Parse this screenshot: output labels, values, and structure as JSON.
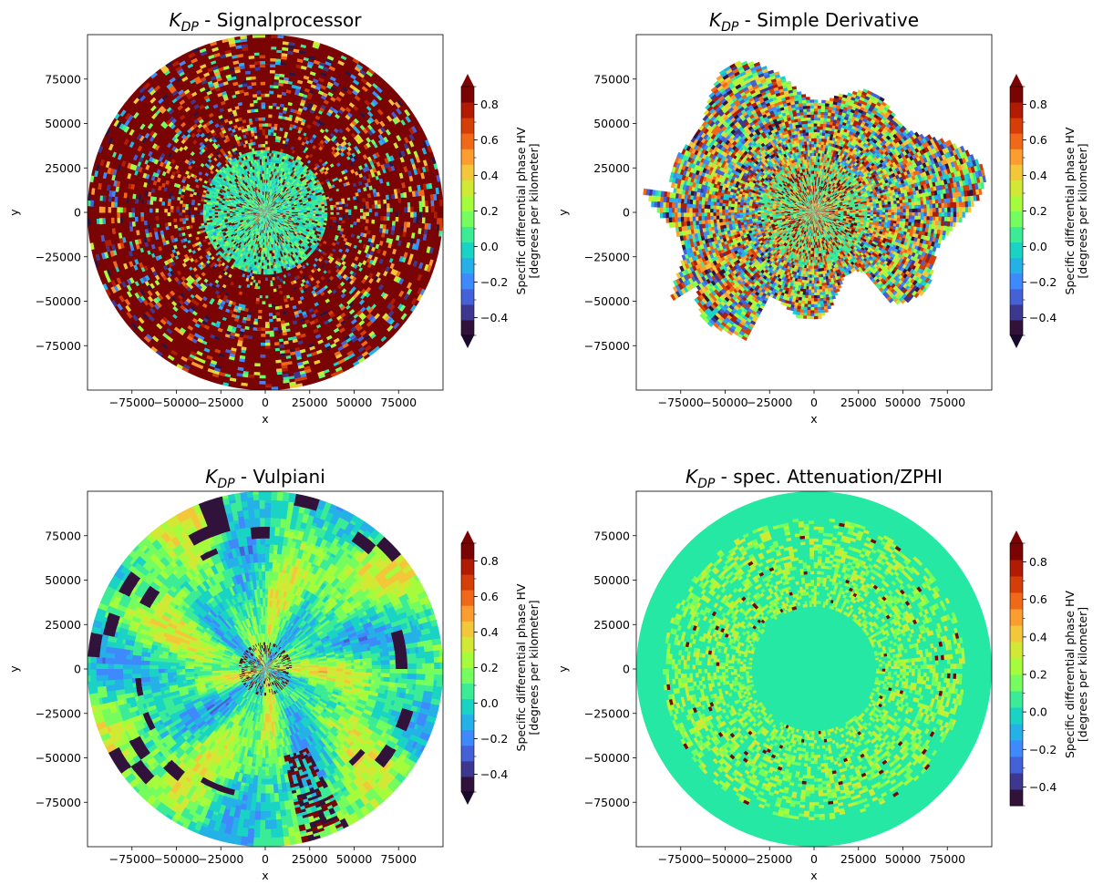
{
  "chart_data": [
    {
      "type": "heatmap",
      "title": {
        "main": "K",
        "sub": "DP",
        "rest": " - Signalprocessor"
      },
      "xlabel": "x",
      "ylabel": "y",
      "xlim": [
        -100000,
        100000
      ],
      "ylim": [
        -100000,
        100000
      ],
      "xticks": [
        -75000,
        -50000,
        -25000,
        0,
        25000,
        50000,
        75000
      ],
      "xticklabels": [
        "−75000",
        "−50000",
        "−25000",
        "0",
        "25000",
        "50000",
        "75000"
      ],
      "yticks": [
        75000,
        50000,
        25000,
        0,
        -25000,
        -50000,
        -75000
      ],
      "yticklabels": [
        "75000",
        "50000",
        "25000",
        "0",
        "−25000",
        "−50000",
        "−75000"
      ],
      "pattern": "noisy-dark",
      "colorbar": {
        "label_line1": "Specific differential phase HV",
        "label_line2": "[degrees per kilometer]",
        "ticks": [
          0.8,
          0.6,
          0.4,
          0.2,
          0.0,
          -0.2,
          -0.4
        ],
        "ticklabels": [
          "0.8",
          "0.6",
          "0.4",
          "0.2",
          "0.0",
          "−0.2",
          "−0.4"
        ],
        "range": [
          -0.5,
          0.9
        ],
        "step": 0.1,
        "extend": "both"
      }
    },
    {
      "type": "heatmap",
      "title": {
        "main": "K",
        "sub": "DP",
        "rest": " - Simple Derivative"
      },
      "xlabel": "x",
      "ylabel": "y",
      "xlim": [
        -100000,
        100000
      ],
      "ylim": [
        -100000,
        100000
      ],
      "xticks": [
        -75000,
        -50000,
        -25000,
        0,
        25000,
        50000,
        75000
      ],
      "xticklabels": [
        "−75000",
        "−50000",
        "−25000",
        "0",
        "25000",
        "50000",
        "75000"
      ],
      "yticks": [
        75000,
        50000,
        25000,
        0,
        -25000,
        -50000,
        -75000
      ],
      "yticklabels": [
        "75000",
        "50000",
        "25000",
        "0",
        "−25000",
        "−50000",
        "−75000"
      ],
      "pattern": "noisy-echo",
      "colorbar": {
        "label_line1": "Specific differential phase HV",
        "label_line2": "[degrees per kilometer]",
        "ticks": [
          0.8,
          0.6,
          0.4,
          0.2,
          0.0,
          -0.2,
          -0.4
        ],
        "ticklabels": [
          "0.8",
          "0.6",
          "0.4",
          "0.2",
          "0.0",
          "−0.2",
          "−0.4"
        ],
        "range": [
          -0.5,
          0.9
        ],
        "step": 0.1,
        "extend": "both"
      }
    },
    {
      "type": "heatmap",
      "title": {
        "main": "K",
        "sub": "DP",
        "rest": " - Vulpiani"
      },
      "xlabel": "x",
      "ylabel": "y",
      "xlim": [
        -100000,
        100000
      ],
      "ylim": [
        -100000,
        100000
      ],
      "xticks": [
        -75000,
        -50000,
        -25000,
        0,
        25000,
        50000,
        75000
      ],
      "xticklabels": [
        "−75000",
        "−50000",
        "−25000",
        "0",
        "25000",
        "50000",
        "75000"
      ],
      "yticks": [
        75000,
        50000,
        25000,
        0,
        -25000,
        -50000,
        -75000
      ],
      "yticklabels": [
        "75000",
        "50000",
        "25000",
        "0",
        "−25000",
        "−50000",
        "−75000"
      ],
      "pattern": "smooth-radial",
      "colorbar": {
        "label_line1": "Specific differential phase HV",
        "label_line2": "[degrees per kilometer]",
        "ticks": [
          0.8,
          0.6,
          0.4,
          0.2,
          0.0,
          -0.2,
          -0.4
        ],
        "ticklabels": [
          "0.8",
          "0.6",
          "0.4",
          "0.2",
          "0.0",
          "−0.2",
          "−0.4"
        ],
        "range": [
          -0.5,
          0.9
        ],
        "step": 0.1,
        "extend": "both"
      }
    },
    {
      "type": "heatmap",
      "title": {
        "main": "K",
        "sub": "DP",
        "rest": " - spec. Attenuation/ZPHI"
      },
      "xlabel": "x",
      "ylabel": "y",
      "xlim": [
        -100000,
        100000
      ],
      "ylim": [
        -100000,
        100000
      ],
      "xticks": [
        -75000,
        -50000,
        -25000,
        0,
        25000,
        50000,
        75000
      ],
      "xticklabels": [
        "−75000",
        "−50000",
        "−25000",
        "0",
        "25000",
        "50000",
        "75000"
      ],
      "yticks": [
        75000,
        50000,
        25000,
        0,
        -25000,
        -50000,
        -75000
      ],
      "yticklabels": [
        "75000",
        "50000",
        "25000",
        "0",
        "−25000",
        "−50000",
        "−75000"
      ],
      "pattern": "uniform-ring",
      "colorbar": {
        "label_line1": "Specific differential phase HV",
        "label_line2": "[degrees per kilometer]",
        "ticks": [
          0.8,
          0.6,
          0.4,
          0.2,
          0.0,
          -0.2,
          -0.4
        ],
        "ticklabels": [
          "0.8",
          "0.6",
          "0.4",
          "0.2",
          "0.0",
          "−0.2",
          "−0.4"
        ],
        "range": [
          -0.5,
          0.9
        ],
        "step": 0.1,
        "extend": "max"
      }
    }
  ],
  "colormap": {
    "name": "turbo",
    "colors": [
      "#30123b",
      "#3e378f",
      "#4461d7",
      "#3e89fb",
      "#25b0e8",
      "#19d3c5",
      "#3ceb96",
      "#75fd5f",
      "#a4fc3c",
      "#d1e934",
      "#f2c83a",
      "#fd9c2f",
      "#f06919",
      "#d53e07",
      "#b01b02",
      "#7a0403"
    ]
  }
}
